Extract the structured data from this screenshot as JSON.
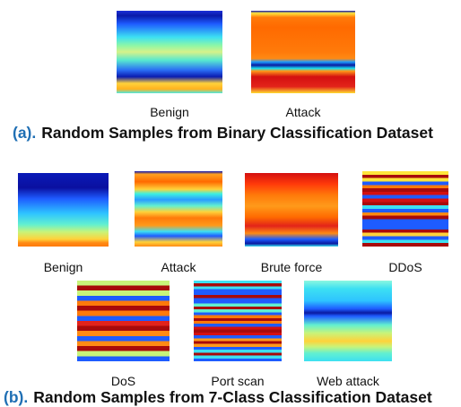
{
  "figure": {
    "panel_a": {
      "tag": "(a).",
      "caption": "Random Samples from Binary Classification Dataset",
      "samples": [
        {
          "label": "Benign",
          "bands": [
            [
              0,
              "#1c2fd8"
            ],
            [
              0.06,
              "#0a1aa8"
            ],
            [
              0.16,
              "#1e5cff"
            ],
            [
              0.32,
              "#3de0f2"
            ],
            [
              0.42,
              "#8cf7a8"
            ],
            [
              0.5,
              "#d6f28a"
            ],
            [
              0.6,
              "#57e8d0"
            ],
            [
              0.72,
              "#2a6df5"
            ],
            [
              0.8,
              "#0a1cb0"
            ],
            [
              0.88,
              "#ffd23a"
            ],
            [
              0.95,
              "#ffb21f"
            ],
            [
              1,
              "#4de8e0"
            ]
          ]
        },
        {
          "label": "Attack",
          "bands": [
            [
              0,
              "#0a14b0"
            ],
            [
              0.03,
              "#ffe53b"
            ],
            [
              0.08,
              "#ff7a0a"
            ],
            [
              0.2,
              "#ff6a00"
            ],
            [
              0.5,
              "#ff7a0a"
            ],
            [
              0.58,
              "#ff8a14"
            ],
            [
              0.62,
              "#1d9cff"
            ],
            [
              0.66,
              "#0a1aa0"
            ],
            [
              0.7,
              "#18e0f0"
            ],
            [
              0.73,
              "#ff9a1a"
            ],
            [
              0.8,
              "#d41010"
            ],
            [
              0.92,
              "#e2231a"
            ],
            [
              1,
              "#ffdc30"
            ]
          ]
        }
      ]
    },
    "panel_b": {
      "tag": "(b).",
      "caption": "Random Samples from 7-Class Classification Dataset",
      "samples": [
        {
          "label": "Benign",
          "bands": [
            [
              0,
              "#0a1ab8"
            ],
            [
              0.2,
              "#0a10a0"
            ],
            [
              0.35,
              "#1e5cff"
            ],
            [
              0.55,
              "#2ec4ff"
            ],
            [
              0.7,
              "#62f0d0"
            ],
            [
              0.8,
              "#c8f47a"
            ],
            [
              0.9,
              "#ffd23a"
            ],
            [
              0.95,
              "#ff8a14"
            ],
            [
              1,
              "#ff7a0a"
            ]
          ]
        },
        {
          "label": "Attack",
          "bands": [
            [
              0,
              "#0a14b0"
            ],
            [
              0.04,
              "#ffa11f"
            ],
            [
              0.14,
              "#ff6a00"
            ],
            [
              0.24,
              "#ffd23a"
            ],
            [
              0.3,
              "#3df0e0"
            ],
            [
              0.38,
              "#2a9cff"
            ],
            [
              0.46,
              "#62f0d0"
            ],
            [
              0.54,
              "#ffd23a"
            ],
            [
              0.62,
              "#ff7a0a"
            ],
            [
              0.72,
              "#ff9a1a"
            ],
            [
              0.8,
              "#3de0f2"
            ],
            [
              0.86,
              "#1e5cff"
            ],
            [
              0.94,
              "#ffd23a"
            ],
            [
              1,
              "#ff8a14"
            ]
          ]
        },
        {
          "label": "Brute force",
          "bands": [
            [
              0,
              "#d41010"
            ],
            [
              0.15,
              "#ff3a0a"
            ],
            [
              0.3,
              "#ff7a0a"
            ],
            [
              0.45,
              "#ff9a1a"
            ],
            [
              0.6,
              "#ff6a00"
            ],
            [
              0.72,
              "#e2231a"
            ],
            [
              0.82,
              "#ff8a14"
            ],
            [
              0.9,
              "#1d5cff"
            ],
            [
              0.96,
              "#0a1aa0"
            ],
            [
              1,
              "#3de0f2"
            ]
          ]
        },
        {
          "label": "DDoS",
          "stripes": 22,
          "bands": [
            [
              0,
              "#ffe53b"
            ],
            [
              0.12,
              "#ff7a0a"
            ],
            [
              0.25,
              "#d41010"
            ],
            [
              0.4,
              "#3de0f2"
            ],
            [
              0.55,
              "#ff8a14"
            ],
            [
              0.7,
              "#1e5cff"
            ],
            [
              0.85,
              "#ffd23a"
            ],
            [
              1,
              "#3de0f2"
            ]
          ]
        },
        {
          "label": "DoS",
          "stripes": 16,
          "bands": [
            [
              0,
              "#c8f47a"
            ],
            [
              0.2,
              "#ff7a0a"
            ],
            [
              0.5,
              "#e2231a"
            ],
            [
              0.8,
              "#ff8a14"
            ],
            [
              1,
              "#c8f47a"
            ]
          ]
        },
        {
          "label": "Port scan",
          "stripes": 28,
          "bands": [
            [
              0,
              "#3de0f2"
            ],
            [
              0.15,
              "#1e5cff"
            ],
            [
              0.3,
              "#62f0d0"
            ],
            [
              0.5,
              "#ff7a0a"
            ],
            [
              0.7,
              "#d41010"
            ],
            [
              0.85,
              "#ff9a1a"
            ],
            [
              1,
              "#3de0f2"
            ]
          ]
        },
        {
          "label": "Web attack",
          "bands": [
            [
              0,
              "#8cf7e0"
            ],
            [
              0.1,
              "#3de0f2"
            ],
            [
              0.25,
              "#2ec4ff"
            ],
            [
              0.35,
              "#1e5cff"
            ],
            [
              0.4,
              "#0a1aa0"
            ],
            [
              0.44,
              "#1e5cff"
            ],
            [
              0.55,
              "#62f0d0"
            ],
            [
              0.65,
              "#c8f47a"
            ],
            [
              0.75,
              "#ffd23a"
            ],
            [
              0.82,
              "#c8f47a"
            ],
            [
              0.9,
              "#62f0d0"
            ],
            [
              1,
              "#3de0f2"
            ]
          ]
        }
      ]
    }
  }
}
